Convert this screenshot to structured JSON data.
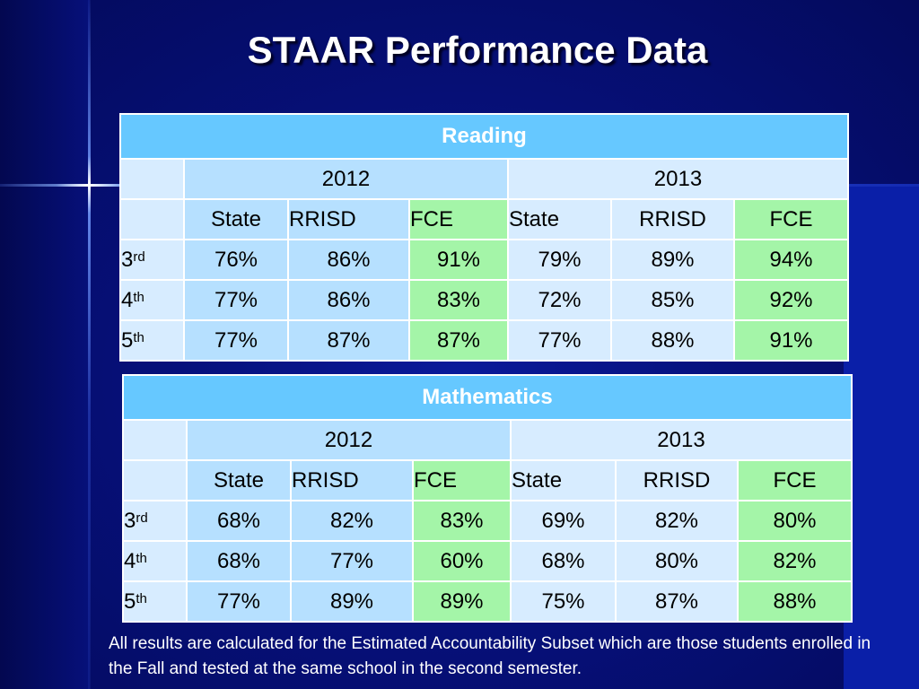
{
  "title": "STAAR Performance Data",
  "reading": {
    "heading": "Reading",
    "years": [
      "2012",
      "2013"
    ],
    "columns": [
      "State",
      "RRISD",
      "FCE",
      "State",
      "RRISD",
      "FCE"
    ],
    "rows": [
      {
        "grade": "3",
        "suffix": "rd",
        "values": [
          "76%",
          "86%",
          "91%",
          "79%",
          "89%",
          "94%"
        ]
      },
      {
        "grade": "4",
        "suffix": "th",
        "values": [
          "77%",
          "86%",
          "83%",
          "72%",
          "85%",
          "92%"
        ]
      },
      {
        "grade": "5",
        "suffix": "th",
        "values": [
          "77%",
          "87%",
          "87%",
          "77%",
          "88%",
          "91%"
        ]
      }
    ]
  },
  "math": {
    "heading": "Mathematics",
    "years": [
      "2012",
      "2013"
    ],
    "columns": [
      "State",
      "RRISD",
      "FCE",
      "State",
      "RRISD",
      "FCE"
    ],
    "rows": [
      {
        "grade": "3",
        "suffix": "rd",
        "values": [
          "68%",
          "82%",
          "83%",
          "69%",
          "82%",
          "80%"
        ]
      },
      {
        "grade": "4",
        "suffix": "th",
        "values": [
          "68%",
          "77%",
          "60%",
          "68%",
          "80%",
          "82%"
        ]
      },
      {
        "grade": "5",
        "suffix": "th",
        "values": [
          "77%",
          "89%",
          "89%",
          "75%",
          "87%",
          "88%"
        ]
      }
    ]
  },
  "footnote": "All results are calculated for the Estimated Accountability Subset which are those students enrolled in the Fall and tested at the same school in the second semester."
}
